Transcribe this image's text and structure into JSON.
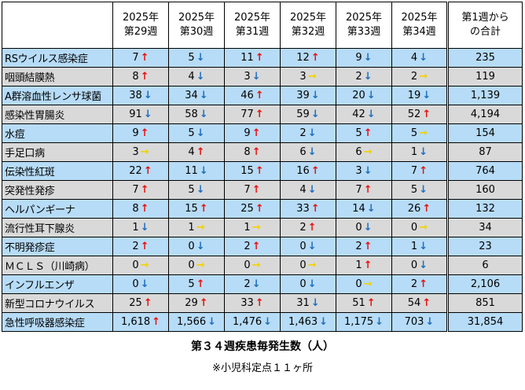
{
  "headers": {
    "name": "",
    "weeks": [
      [
        "2025年",
        "第29週"
      ],
      [
        "2025年",
        "第30週"
      ],
      [
        "2025年",
        "第31週"
      ],
      [
        "2025年",
        "第32週"
      ],
      [
        "2025年",
        "第33週"
      ],
      [
        "2025年",
        "第34週"
      ]
    ],
    "total": [
      "第1週から",
      "の合計"
    ]
  },
  "rows": [
    {
      "name": "RSウイルス感染症",
      "cells": [
        [
          "7",
          "up"
        ],
        [
          "5",
          "down"
        ],
        [
          "11",
          "up"
        ],
        [
          "12",
          "up"
        ],
        [
          "9",
          "down"
        ],
        [
          "4",
          "down"
        ]
      ],
      "total": "235"
    },
    {
      "name": "咽頭結膜熱",
      "cells": [
        [
          "8",
          "up"
        ],
        [
          "4",
          "down"
        ],
        [
          "3",
          "down"
        ],
        [
          "3",
          "flat"
        ],
        [
          "2",
          "down"
        ],
        [
          "2",
          "flat"
        ]
      ],
      "total": "119"
    },
    {
      "name": "A群溶血性レンサ球菌",
      "cells": [
        [
          "38",
          "down"
        ],
        [
          "34",
          "down"
        ],
        [
          "46",
          "up"
        ],
        [
          "39",
          "down"
        ],
        [
          "20",
          "down"
        ],
        [
          "19",
          "down"
        ]
      ],
      "total": "1,139"
    },
    {
      "name": "感染性胃腸炎",
      "cells": [
        [
          "91",
          "down"
        ],
        [
          "58",
          "down"
        ],
        [
          "77",
          "up"
        ],
        [
          "59",
          "down"
        ],
        [
          "42",
          "down"
        ],
        [
          "52",
          "up"
        ]
      ],
      "total": "4,194"
    },
    {
      "name": "水痘",
      "cells": [
        [
          "9",
          "up"
        ],
        [
          "5",
          "down"
        ],
        [
          "9",
          "up"
        ],
        [
          "2",
          "down"
        ],
        [
          "5",
          "up"
        ],
        [
          "5",
          "flat"
        ]
      ],
      "total": "154"
    },
    {
      "name": "手足口病",
      "cells": [
        [
          "3",
          "flat"
        ],
        [
          "4",
          "up"
        ],
        [
          "8",
          "up"
        ],
        [
          "6",
          "down"
        ],
        [
          "6",
          "flat"
        ],
        [
          "1",
          "down"
        ]
      ],
      "total": "87"
    },
    {
      "name": "伝染性紅斑",
      "cells": [
        [
          "22",
          "up"
        ],
        [
          "11",
          "down"
        ],
        [
          "15",
          "up"
        ],
        [
          "16",
          "up"
        ],
        [
          "3",
          "down"
        ],
        [
          "7",
          "up"
        ]
      ],
      "total": "764"
    },
    {
      "name": "突発性発疹",
      "cells": [
        [
          "7",
          "up"
        ],
        [
          "5",
          "down"
        ],
        [
          "7",
          "up"
        ],
        [
          "4",
          "down"
        ],
        [
          "7",
          "up"
        ],
        [
          "5",
          "down"
        ]
      ],
      "total": "160"
    },
    {
      "name": "ヘルパンギーナ",
      "cells": [
        [
          "8",
          "up"
        ],
        [
          "15",
          "up"
        ],
        [
          "25",
          "up"
        ],
        [
          "33",
          "up"
        ],
        [
          "14",
          "down"
        ],
        [
          "26",
          "up"
        ]
      ],
      "total": "132"
    },
    {
      "name": "流行性耳下腺炎",
      "cells": [
        [
          "1",
          "down"
        ],
        [
          "1",
          "flat"
        ],
        [
          "1",
          "flat"
        ],
        [
          "2",
          "up"
        ],
        [
          "0",
          "down"
        ],
        [
          "0",
          "flat"
        ]
      ],
      "total": "34"
    },
    {
      "name": "不明発疹症",
      "cells": [
        [
          "2",
          "up"
        ],
        [
          "0",
          "down"
        ],
        [
          "2",
          "up"
        ],
        [
          "0",
          "down"
        ],
        [
          "2",
          "up"
        ],
        [
          "1",
          "down"
        ]
      ],
      "total": "23"
    },
    {
      "name": "ＭＣＬＳ（川崎病）",
      "cells": [
        [
          "0",
          "flat"
        ],
        [
          "0",
          "flat"
        ],
        [
          "0",
          "flat"
        ],
        [
          "0",
          "flat"
        ],
        [
          "1",
          "up"
        ],
        [
          "0",
          "down"
        ]
      ],
      "total": "6"
    },
    {
      "name": "インフルエンザ",
      "cells": [
        [
          "0",
          "down"
        ],
        [
          "5",
          "up"
        ],
        [
          "2",
          "down"
        ],
        [
          "0",
          "down"
        ],
        [
          "0",
          "flat"
        ],
        [
          "2",
          "up"
        ]
      ],
      "total": "2,106"
    },
    {
      "name": "新型コロナウイルス",
      "cells": [
        [
          "25",
          "up"
        ],
        [
          "29",
          "up"
        ],
        [
          "33",
          "up"
        ],
        [
          "31",
          "down"
        ],
        [
          "51",
          "up"
        ],
        [
          "54",
          "up"
        ]
      ],
      "total": "851"
    },
    {
      "name": "急性呼吸器感染症",
      "cells": [
        [
          "1,618",
          "up"
        ],
        [
          "1,566",
          "down"
        ],
        [
          "1,476",
          "down"
        ],
        [
          "1,463",
          "down"
        ],
        [
          "1,175",
          "down"
        ],
        [
          "703",
          "down"
        ]
      ],
      "total": "31,854"
    }
  ],
  "arrow_glyphs": {
    "up": "↑",
    "down": "↓",
    "flat": "→"
  },
  "colors": {
    "row_blue": "#b7dcf7",
    "row_gray": "#d9d9d9",
    "arrow_up": "#e8110f",
    "arrow_down": "#1e6fc0",
    "arrow_flat": "#f2d200"
  },
  "caption": "第３４週疾患毎発生数（人）",
  "note": "※小児科定点１１ヶ所"
}
